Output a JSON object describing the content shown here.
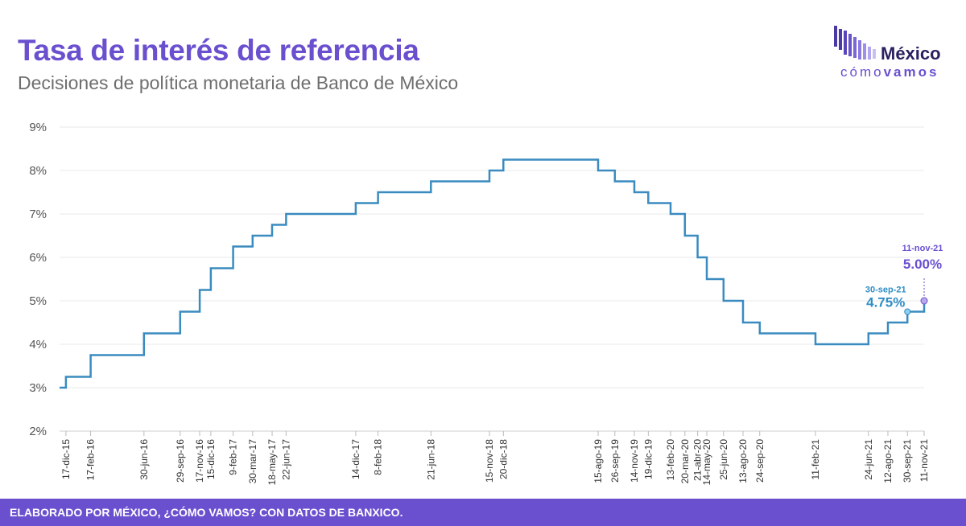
{
  "title": "Tasa de interés de referencia",
  "subtitle": "Decisiones de política monetaria de Banco de México",
  "logo": {
    "name": "México",
    "tag_a": "cómo",
    "tag_b": "vamos"
  },
  "footer": "ELABORADO POR MÉXICO, ¿CÓMO VAMOS? CON DATOS DE BANXICO.",
  "colors": {
    "line": "#3a8bbf",
    "accent": "#6a4fcf",
    "annotation_blue": "#2f8ec6",
    "grid": "#eaeaea"
  },
  "chart_data": {
    "type": "line",
    "step": "after",
    "x_axis": "date",
    "x_start": "2015-12-01",
    "x_end": "2021-11-11",
    "ylim": [
      2,
      9
    ],
    "yticks": [
      "2%",
      "3%",
      "4%",
      "5%",
      "6%",
      "7%",
      "8%",
      "9%"
    ],
    "grid": true,
    "series": [
      {
        "name": "",
        "points": [
          {
            "date": "2015-12-01",
            "label": "",
            "value": 3.0
          },
          {
            "date": "2015-12-17",
            "label": "17-dic-15",
            "value": 3.25
          },
          {
            "date": "2016-02-17",
            "label": "17-feb-16",
            "value": 3.75
          },
          {
            "date": "2016-06-30",
            "label": "30-jun-16",
            "value": 4.25
          },
          {
            "date": "2016-09-29",
            "label": "29-sep-16",
            "value": 4.75
          },
          {
            "date": "2016-11-17",
            "label": "17-nov-16",
            "value": 5.25
          },
          {
            "date": "2016-12-15",
            "label": "15-dic-16",
            "value": 5.75
          },
          {
            "date": "2017-02-09",
            "label": "9-feb-17",
            "value": 6.25
          },
          {
            "date": "2017-03-30",
            "label": "30-mar-17",
            "value": 6.5
          },
          {
            "date": "2017-05-18",
            "label": "18-may-17",
            "value": 6.75
          },
          {
            "date": "2017-06-22",
            "label": "22-jun-17",
            "value": 7.0
          },
          {
            "date": "2017-12-14",
            "label": "14-dic-17",
            "value": 7.25
          },
          {
            "date": "2018-02-08",
            "label": "8-feb-18",
            "value": 7.5
          },
          {
            "date": "2018-06-21",
            "label": "21-jun-18",
            "value": 7.75
          },
          {
            "date": "2018-11-15",
            "label": "15-nov-18",
            "value": 8.0
          },
          {
            "date": "2018-12-20",
            "label": "20-dic-18",
            "value": 8.25
          },
          {
            "date": "2019-08-15",
            "label": "15-ago-19",
            "value": 8.0
          },
          {
            "date": "2019-09-26",
            "label": "26-sep-19",
            "value": 7.75
          },
          {
            "date": "2019-11-14",
            "label": "14-nov-19",
            "value": 7.5
          },
          {
            "date": "2019-12-19",
            "label": "19-dic-19",
            "value": 7.25
          },
          {
            "date": "2020-02-13",
            "label": "13-feb-20",
            "value": 7.0
          },
          {
            "date": "2020-03-20",
            "label": "20-mar-20",
            "value": 6.5
          },
          {
            "date": "2020-04-21",
            "label": "21-abr-20",
            "value": 6.0
          },
          {
            "date": "2020-05-14",
            "label": "14-may-20",
            "value": 5.5
          },
          {
            "date": "2020-06-25",
            "label": "25-jun-20",
            "value": 5.0
          },
          {
            "date": "2020-08-13",
            "label": "13-ago-20",
            "value": 4.5
          },
          {
            "date": "2020-09-24",
            "label": "24-sep-20",
            "value": 4.25
          },
          {
            "date": "2021-02-11",
            "label": "11-feb-21",
            "value": 4.0
          },
          {
            "date": "2021-06-24",
            "label": "24-jun-21",
            "value": 4.25
          },
          {
            "date": "2021-08-12",
            "label": "12-ago-21",
            "value": 4.5
          },
          {
            "date": "2021-09-30",
            "label": "30-sep-21",
            "value": 4.75
          },
          {
            "date": "2021-11-11",
            "label": "11-nov-21",
            "value": 5.0
          }
        ]
      }
    ],
    "annotations": [
      {
        "date": "2021-09-30",
        "value": 4.75,
        "date_label": "30-sep-21",
        "value_label": "4.75%",
        "color": "#2f8ec6"
      },
      {
        "date": "2021-11-11",
        "value": 5.0,
        "date_label": "11-nov-21",
        "value_label": "5.00%",
        "color": "#6a4fcf"
      }
    ]
  }
}
